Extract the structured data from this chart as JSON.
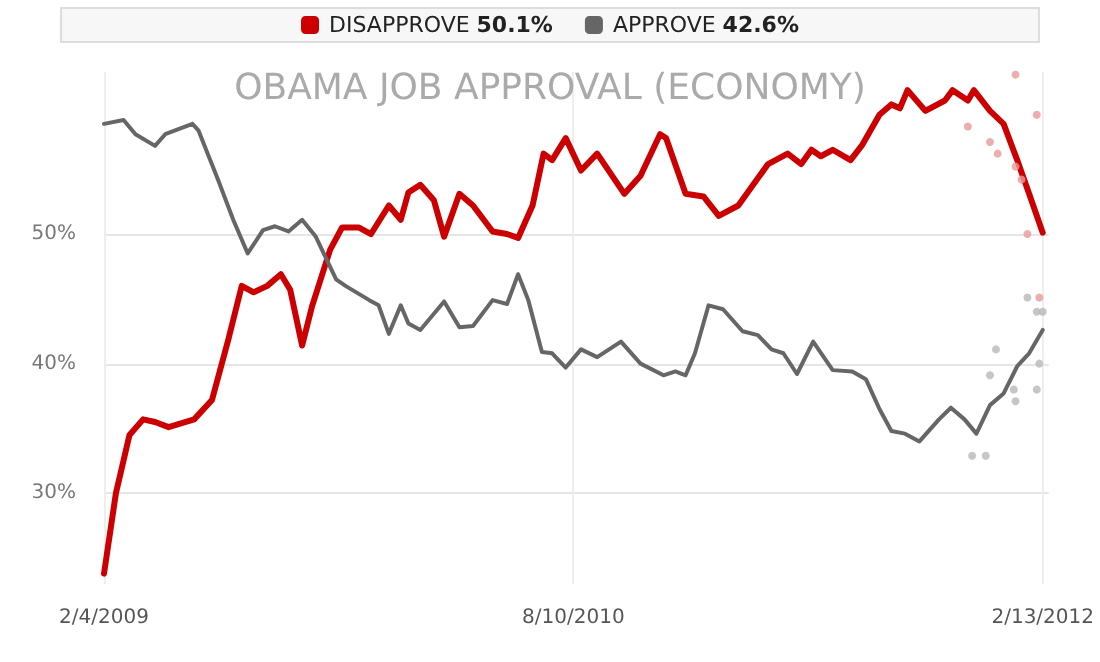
{
  "chart_data": {
    "type": "line",
    "title": "OBAMA JOB APPROVAL (ECONOMY)",
    "legend": "top",
    "grid": true,
    "line_style": "solid",
    "xlim": [
      "2009-02-04",
      "2012-02-20"
    ],
    "xticks": [
      {
        "value": "2009-02-04",
        "label": "2/4/2009"
      },
      {
        "value": "2010-08-10",
        "label": "8/10/2010"
      },
      {
        "value": "2012-02-13",
        "label": "2/13/2012"
      }
    ],
    "ylim": [
      23,
      62.5
    ],
    "yticks": [
      {
        "value": 30,
        "label": "30%"
      },
      {
        "value": 40,
        "label": "40%"
      },
      {
        "value": 50,
        "label": "50%"
      }
    ],
    "series": [
      {
        "name": "DISAPPROVE 50.1%",
        "color": "#cc0000",
        "x": [
          "2009-02-04",
          "2009-02-18",
          "2009-03-06",
          "2009-03-22",
          "2009-04-05",
          "2009-04-21",
          "2009-05-21",
          "2009-06-11",
          "2009-06-30",
          "2009-07-16",
          "2009-07-30",
          "2009-08-15",
          "2009-08-31",
          "2009-09-11",
          "2009-09-25",
          "2009-10-07",
          "2009-10-28",
          "2009-11-11",
          "2009-12-01",
          "2009-12-15",
          "2010-01-05",
          "2010-01-19",
          "2010-01-28",
          "2010-02-11",
          "2010-02-27",
          "2010-03-11",
          "2010-03-29",
          "2010-04-14",
          "2010-05-07",
          "2010-05-24",
          "2010-06-06",
          "2010-06-23",
          "2010-07-06",
          "2010-07-16",
          "2010-08-01",
          "2010-08-19",
          "2010-09-07",
          "2010-10-09",
          "2010-10-28",
          "2010-11-20",
          "2010-11-27",
          "2010-12-20",
          "2011-01-10",
          "2011-01-28",
          "2011-02-20",
          "2011-03-27",
          "2011-04-19",
          "2011-05-05",
          "2011-05-17",
          "2011-05-28",
          "2011-06-11",
          "2011-07-02",
          "2011-07-16",
          "2011-08-05",
          "2011-08-19",
          "2011-08-29",
          "2011-09-07",
          "2011-09-28",
          "2011-10-21",
          "2011-10-30",
          "2011-11-17",
          "2011-11-24",
          "2011-12-13",
          "2011-12-29",
          "2012-01-14",
          "2012-01-28",
          "2012-02-13"
        ],
        "values": [
          23.8,
          30,
          34.5,
          35.7,
          35.5,
          35.1,
          35.7,
          37.2,
          41.8,
          46,
          45.5,
          46,
          46.9,
          45.7,
          41.4,
          44.5,
          48.8,
          50.5,
          50.5,
          50,
          52.2,
          51.1,
          53.2,
          53.8,
          52.6,
          49.8,
          53.1,
          52.2,
          50.2,
          50,
          49.7,
          52.2,
          56.2,
          55.7,
          57.4,
          54.9,
          56.2,
          53.1,
          54.5,
          57.7,
          57.4,
          53.1,
          52.9,
          51.4,
          52.2,
          55.4,
          56.2,
          55.4,
          56.5,
          56,
          56.5,
          55.7,
          56.9,
          59.2,
          60,
          59.7,
          61.1,
          59.5,
          60.3,
          61.1,
          60.3,
          61.1,
          59.5,
          58.5,
          55.7,
          53.1,
          50.1
        ]
      },
      {
        "name": "APPROVE 42.6%",
        "color": "#666666",
        "x": [
          "2009-02-04",
          "2009-02-27",
          "2009-03-13",
          "2009-04-05",
          "2009-04-17",
          "2009-05-19",
          "2009-05-26",
          "2009-06-18",
          "2009-07-06",
          "2009-07-23",
          "2009-08-10",
          "2009-08-24",
          "2009-09-09",
          "2009-09-25",
          "2009-10-11",
          "2009-11-04",
          "2009-11-15",
          "2009-12-13",
          "2009-12-24",
          "2010-01-05",
          "2010-01-19",
          "2010-01-28",
          "2010-02-11",
          "2010-03-11",
          "2010-03-29",
          "2010-04-14",
          "2010-05-07",
          "2010-05-24",
          "2010-06-06",
          "2010-06-18",
          "2010-07-04",
          "2010-07-16",
          "2010-08-01",
          "2010-08-19",
          "2010-09-07",
          "2010-10-05",
          "2010-10-28",
          "2010-11-24",
          "2010-12-08",
          "2010-12-20",
          "2010-12-31",
          "2011-01-16",
          "2011-02-02",
          "2011-02-25",
          "2011-03-15",
          "2011-03-31",
          "2011-04-14",
          "2011-04-30",
          "2011-05-19",
          "2011-06-11",
          "2011-07-04",
          "2011-07-20",
          "2011-08-05",
          "2011-08-19",
          "2011-09-04",
          "2011-09-21",
          "2011-10-14",
          "2011-10-28",
          "2011-11-13",
          "2011-11-27",
          "2011-12-13",
          "2011-12-29",
          "2012-01-14",
          "2012-01-28",
          "2012-02-13"
        ],
        "values": [
          58.5,
          58.8,
          57.7,
          56.8,
          57.7,
          58.5,
          58,
          54.2,
          51.1,
          48.5,
          50.3,
          50.6,
          50.2,
          51.1,
          49.8,
          46.5,
          46,
          44.9,
          44.5,
          42.3,
          44.5,
          43.1,
          42.6,
          44.8,
          42.8,
          42.9,
          44.9,
          44.6,
          46.9,
          44.9,
          40.9,
          40.8,
          39.7,
          41.1,
          40.5,
          41.7,
          40,
          39.1,
          39.4,
          39.1,
          40.8,
          44.5,
          44.2,
          42.5,
          42.2,
          41.1,
          40.8,
          39.2,
          41.7,
          39.5,
          39.4,
          38.8,
          36.5,
          34.8,
          34.6,
          34,
          35.7,
          36.6,
          35.7,
          34.6,
          36.8,
          37.7,
          39.8,
          40.8,
          42.6
        ]
      },
      {
        "type": "scatter",
        "color": "#e89a9a",
        "x": [
          "2011-11-17",
          "2011-12-13",
          "2011-12-22",
          "2012-01-12",
          "2012-01-19",
          "2012-01-26",
          "2012-01-12",
          "2012-02-06",
          "2012-02-09"
        ],
        "values": [
          58.3,
          57.1,
          56.2,
          55.2,
          54.2,
          50,
          62.3,
          59.2,
          45.1
        ]
      },
      {
        "type": "scatter",
        "color": "#b8b8b8",
        "x": [
          "2011-11-22",
          "2011-12-08",
          "2011-12-13",
          "2011-12-20",
          "2012-01-10",
          "2012-01-12",
          "2012-01-26",
          "2012-02-06",
          "2012-02-13",
          "2012-02-09",
          "2012-02-06"
        ],
        "values": [
          32.9,
          32.9,
          39.1,
          41.1,
          38,
          37.1,
          45.1,
          44,
          44,
          40,
          38
        ]
      }
    ]
  }
}
